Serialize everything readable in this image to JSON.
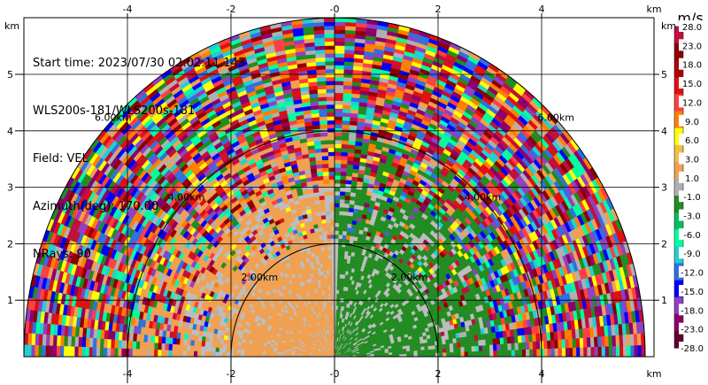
{
  "info": {
    "start_time": "Start time: 2023/07/30 02:02:11.143",
    "site": "WLS200s-181/WLS200s-181",
    "field": "Field: VEL",
    "azimuth": "Azimuth(deg): 170.00",
    "nrays": "NRays: 90"
  },
  "axes": {
    "x_unit": "km",
    "y_unit": "km",
    "x_ticks": [
      "-4",
      "-2",
      "-0",
      "2",
      "4"
    ],
    "x_tick_values": [
      -4,
      -2,
      0,
      2,
      4
    ],
    "y_ticks": [
      "1",
      "2",
      "3",
      "4",
      "5"
    ],
    "y_tick_values": [
      1,
      2,
      3,
      4,
      5
    ],
    "xlim": [
      -6.0,
      6.0
    ],
    "ylim": [
      0,
      5.9
    ]
  },
  "range_rings": {
    "labels": [
      "2.00km",
      "4.00km",
      "6.00km"
    ],
    "values_km": [
      2,
      4,
      6
    ]
  },
  "colorbar": {
    "unit": "m/s",
    "labels": [
      "28.0",
      "23.0",
      "18.0",
      "15.0",
      "12.0",
      "9.0",
      "6.0",
      "3.0",
      "1.0",
      "-1.0",
      "-3.0",
      "-6.0",
      "-9.0",
      "-12.0",
      "-15.0",
      "-18.0",
      "-23.0",
      "-28.0"
    ],
    "colors": [
      "#c0103c",
      "#8b0000",
      "#b00000",
      "#e01010",
      "#ff4040",
      "#ff8000",
      "#ffff00",
      "#f0c040",
      "#f0a050",
      "#b0b0b0",
      "#228b22",
      "#00c060",
      "#00ffa0",
      "#20d0d0",
      "#3070e0",
      "#0000ff",
      "#9040c0",
      "#8b006b",
      "#600030"
    ]
  },
  "field_colors": {
    "orange": "#f0a050",
    "gray": "#bdbdbd",
    "green": "#228b22",
    "noise": [
      "#c0103c",
      "#8b0000",
      "#e01010",
      "#ff4040",
      "#ff8000",
      "#ffff00",
      "#00ffa0",
      "#20d0d0",
      "#3070e0",
      "#0000ff",
      "#9040c0",
      "#8b006b",
      "#228b22",
      "#f0a050",
      "#b0b0b0"
    ]
  }
}
